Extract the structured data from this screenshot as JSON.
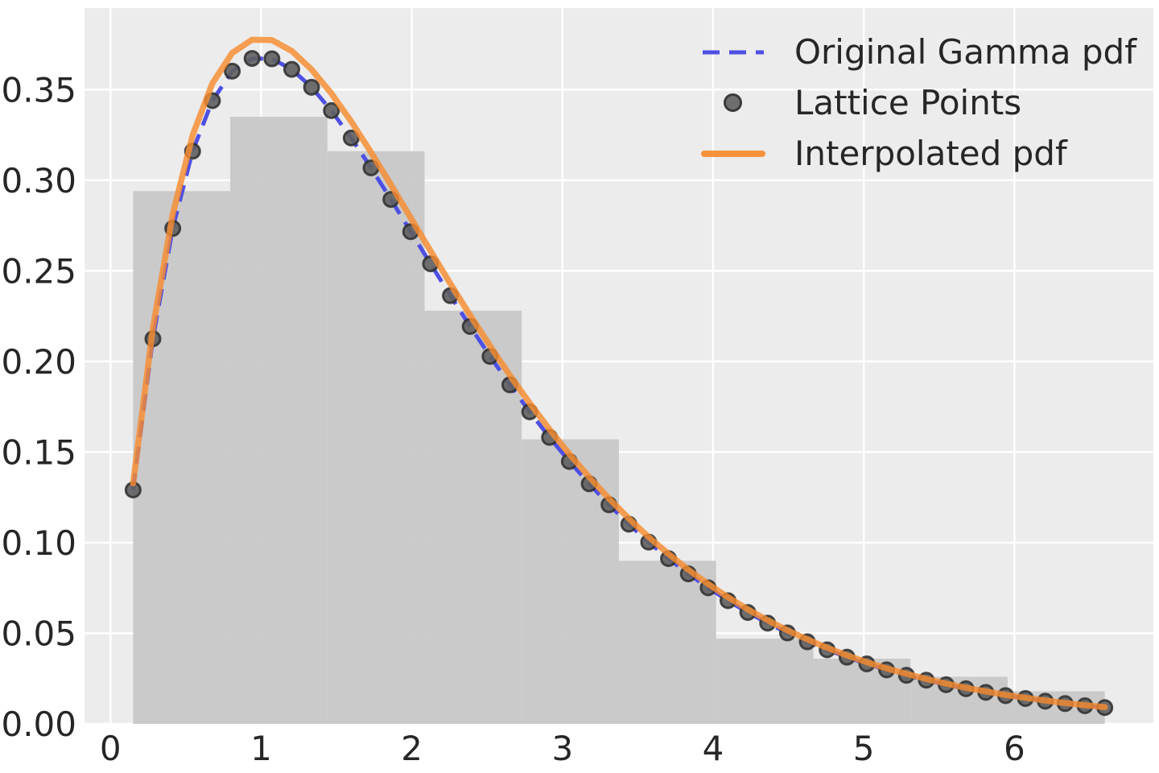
{
  "chart_data": {
    "type": "composite",
    "description": "Gamma pdf with lattice-point interpolation over a sample histogram",
    "axes": {
      "xlim": [
        -0.1725,
        6.9225
      ],
      "ylim": [
        0,
        0.395
      ],
      "x_ticks": [
        0,
        1,
        2,
        3,
        4,
        5,
        6
      ],
      "y_ticks": [
        0.0,
        0.05,
        0.1,
        0.15,
        0.2,
        0.25,
        0.3,
        0.35
      ],
      "y_tick_labels": [
        "0.00",
        "0.05",
        "0.10",
        "0.15",
        "0.20",
        "0.25",
        "0.30",
        "0.35"
      ],
      "grid": true,
      "xlabel": "",
      "ylabel": "",
      "title": ""
    },
    "colors": {
      "plot_bg": "#ececec",
      "grid": "#ffffff",
      "histogram": "#c7c7c7",
      "original_pdf": "#4e4fe3",
      "interpolated_pdf": "#f78b2e",
      "lattice_fill": "#5f5f5f",
      "lattice_edge": "#2e2e2e",
      "tick_text": "#262626"
    },
    "histogram": {
      "bin_edges": [
        0.15,
        0.795,
        1.44,
        2.085,
        2.73,
        3.375,
        4.02,
        4.665,
        5.31,
        5.955,
        6.6
      ],
      "densities": [
        0.294,
        0.335,
        0.316,
        0.228,
        0.157,
        0.09,
        0.047,
        0.036,
        0.026,
        0.018
      ]
    },
    "lattice_x": [
      0.15,
      0.2816,
      0.4133,
      0.5449,
      0.6765,
      0.8082,
      0.9398,
      1.0714,
      1.2031,
      1.3347,
      1.4663,
      1.598,
      1.7296,
      1.8612,
      1.9929,
      2.1245,
      2.2561,
      2.3878,
      2.5194,
      2.651,
      2.7827,
      2.9143,
      3.0459,
      3.1776,
      3.3092,
      3.4408,
      3.5724,
      3.7041,
      3.8357,
      3.9673,
      4.099,
      4.2306,
      4.3622,
      4.4939,
      4.6255,
      4.7571,
      4.8888,
      5.0204,
      5.152,
      5.2837,
      5.4153,
      5.5469,
      5.6786,
      5.8102,
      5.9418,
      6.0735,
      6.2051,
      6.3367,
      6.4684,
      6.6
    ],
    "original_pdf_y": [
      0.1291,
      0.2125,
      0.2734,
      0.316,
      0.3439,
      0.3602,
      0.3672,
      0.367,
      0.3612,
      0.3513,
      0.3384,
      0.3233,
      0.3068,
      0.2894,
      0.2716,
      0.2539,
      0.2363,
      0.2193,
      0.2028,
      0.1871,
      0.1722,
      0.1581,
      0.1448,
      0.1325,
      0.1209,
      0.1102,
      0.1003,
      0.0912,
      0.0828,
      0.0751,
      0.068,
      0.0615,
      0.0556,
      0.0502,
      0.0453,
      0.0409,
      0.0368,
      0.0331,
      0.0298,
      0.0268,
      0.0241,
      0.0216,
      0.0194,
      0.0174,
      0.0156,
      0.014,
      0.0125,
      0.0112,
      0.01,
      0.009
    ],
    "interpolated_pdf_y": [
      0.1327,
      0.2185,
      0.2811,
      0.3248,
      0.3535,
      0.3703,
      0.3775,
      0.3773,
      0.3713,
      0.3611,
      0.3479,
      0.3324,
      0.3154,
      0.2975,
      0.2792,
      0.261,
      0.2429,
      0.2254,
      0.2085,
      0.1923,
      0.177,
      0.1625,
      0.1489,
      0.1362,
      0.1243,
      0.1133,
      0.1031,
      0.0938,
      0.0851,
      0.0772,
      0.0699,
      0.0632,
      0.0572,
      0.0516,
      0.0466,
      0.042,
      0.0378,
      0.034,
      0.0306,
      0.0276,
      0.0248,
      0.0222,
      0.0199,
      0.0179,
      0.016,
      0.0144,
      0.0129,
      0.0115,
      0.0103,
      0.0093
    ],
    "legend": {
      "position": "upper right",
      "frame": false,
      "entries": [
        {
          "label": "Original Gamma pdf",
          "marker": "dashed-line"
        },
        {
          "label": "Lattice Points",
          "marker": "dot"
        },
        {
          "label": "Interpolated pdf",
          "marker": "solid-line"
        }
      ]
    }
  }
}
